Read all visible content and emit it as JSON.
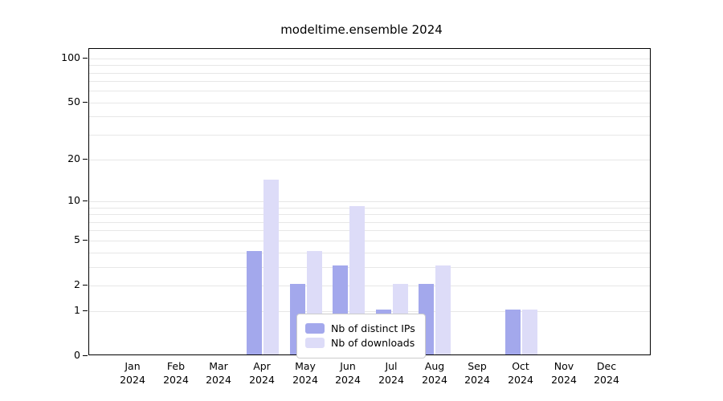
{
  "chart_data": {
    "type": "bar",
    "title": "modeltime.ensemble 2024",
    "scale": "log1p",
    "ymax": 116,
    "year": "2024",
    "categories": [
      "Jan",
      "Feb",
      "Mar",
      "Apr",
      "May",
      "Jun",
      "Jul",
      "Aug",
      "Sep",
      "Oct",
      "Nov",
      "Dec"
    ],
    "series": [
      {
        "name": "Nb of distinct IPs",
        "color": "#a3a8ec",
        "values": [
          0,
          0,
          0,
          4,
          2,
          3,
          1,
          2,
          0,
          1,
          0,
          0
        ]
      },
      {
        "name": "Nb of downloads",
        "color": "#dddcf8",
        "values": [
          0,
          0,
          0,
          14,
          4,
          9,
          2,
          3,
          0,
          1,
          0,
          0
        ]
      }
    ],
    "yticks": [
      0,
      1,
      2,
      5,
      10,
      20,
      50,
      100
    ],
    "gridlines": [
      1,
      2,
      3,
      4,
      5,
      6,
      7,
      8,
      9,
      10,
      20,
      30,
      40,
      50,
      60,
      70,
      80,
      90,
      100
    ],
    "grid_color": "#e7e7e7",
    "legend_position": "bottom-center-inside"
  }
}
